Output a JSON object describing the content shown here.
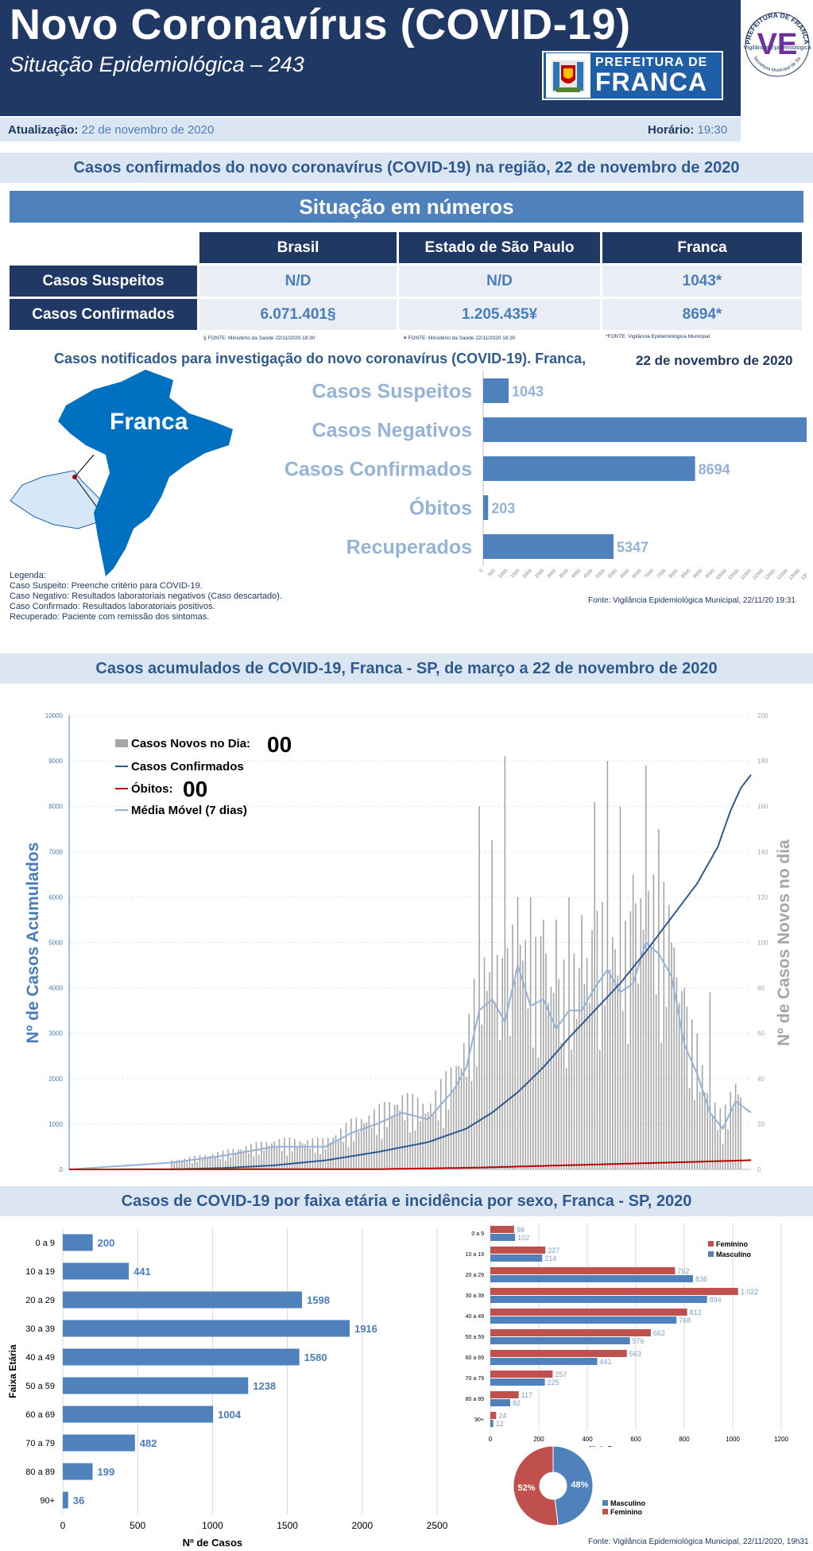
{
  "header": {
    "title": "Novo Coronavírus (COVID-19)",
    "subtitle": "Situação Epidemiológica – 243",
    "logo_small": "PREFEITURA DE",
    "logo_big": "FRANCA",
    "seal_top": "PREFEITURA DE FRANCA",
    "seal_mid": "Vigilância Epidemiológica",
    "seal_bottom": "Secretaria Municipal de Saúde",
    "seal_letter": "VE"
  },
  "update": {
    "date_label": "Atualização:",
    "date_value": "22 de novembro de 2020",
    "time_label": "Horário:",
    "time_value": "19:30"
  },
  "section1": {
    "title": "Casos confirmados do novo coronavírus (COVID-19) na região, 22 de novembro de 2020",
    "table_title": "Situação em números",
    "columns": [
      "Brasil",
      "Estado de São Paulo",
      "Franca"
    ],
    "rows": [
      {
        "label": "Casos Suspeitos",
        "values": [
          "N/D",
          "N/D",
          "1043*"
        ]
      },
      {
        "label": "Casos Confirmados",
        "values": [
          "6.071.401§",
          "1.205.435¥",
          "8694*"
        ]
      }
    ],
    "sources": [
      "§ FONTE: Ministério da Saúde 22/11/2020 18:30",
      "¥ FONTE: Ministério da Saúde 22/11/2020 18:30",
      "*FONTE: Vigilância Epidemiológica Municipal"
    ]
  },
  "section2": {
    "title": "Casos notificados para investigação do novo coronavírus (COVID-19). Franca,",
    "date": "22 de novembro de 2020",
    "map_label": "Franca",
    "legend_lines": [
      "Legenda:",
      "Caso Suspeito: Preenche critério para COVID-19.",
      "Caso Negativo: Resultados laboratoriais negativos (Caso descartado).",
      "Caso Confirmado: Resultados laboratoriais positivos.",
      "Recuperado: Paciente com remissão dos sintomas."
    ],
    "source": "Fonte: Vigilância Epidemiológica Municipal,  22/11/20 19:31",
    "colors": {
      "bar": "#4f81bd",
      "label": "#95b3d7",
      "map": "#0070c0",
      "map_light": "#d6e8f7"
    }
  },
  "section3": {
    "title": "Casos acumulados de COVID-19, Franca - SP, de março a 22 de novembro de 2020",
    "legend": {
      "new_cases": "Casos Novos no Dia:",
      "new_cases_value": "00",
      "confirmed": "Casos Confirmados",
      "deaths": "Óbitos:",
      "deaths_value": "00",
      "moving_avg": "Média Móvel (7 dias)"
    },
    "left_axis_title": "Nº de Casos Acumulados",
    "right_axis_title": "Nº de Casos Novos no dia"
  },
  "section4": {
    "title": "Casos de COVID-19 por faixa etária e incidência por sexo, Franca - SP, 2020",
    "source": "Fonte: Vigilância Epidemiológica Municipal,  22/11/2020, 19h31"
  },
  "chart_data": [
    {
      "type": "bar",
      "orientation": "horizontal",
      "categories": [
        "Casos Suspeitos",
        "Casos Negativos",
        "Casos Confirmados",
        "Óbitos",
        "Recuperados"
      ],
      "values": [
        1043,
        13743,
        8694,
        203,
        5347
      ],
      "xlim": [
        0,
        15000
      ],
      "xticks": [
        0,
        500,
        1000,
        1500,
        2000,
        2500,
        3000,
        3500,
        4000,
        4500,
        5000,
        5500,
        6000,
        6500,
        7000,
        7500,
        8000,
        8500,
        9000,
        9500,
        10000,
        10500,
        11000,
        11500,
        12000,
        12500,
        13000,
        13500,
        14000,
        14500,
        15000
      ]
    },
    {
      "type": "line",
      "x_count": 260,
      "left_ylim": [
        0,
        10000
      ],
      "left_ticks": [
        0,
        1000,
        2000,
        3000,
        4000,
        5000,
        6000,
        7000,
        8000,
        9000,
        10000
      ],
      "right_ylim": [
        0,
        200
      ],
      "right_ticks": [
        0,
        20,
        40,
        60,
        80,
        100,
        120,
        140,
        160,
        180,
        200
      ],
      "confirmed_anchors": [
        [
          0,
          0
        ],
        [
          40,
          2
        ],
        [
          60,
          30
        ],
        [
          80,
          90
        ],
        [
          100,
          200
        ],
        [
          120,
          380
        ],
        [
          140,
          600
        ],
        [
          155,
          900
        ],
        [
          165,
          1250
        ],
        [
          175,
          1700
        ],
        [
          185,
          2250
        ],
        [
          195,
          2900
        ],
        [
          205,
          3500
        ],
        [
          215,
          4100
        ],
        [
          225,
          4800
        ],
        [
          235,
          5550
        ],
        [
          245,
          6300
        ],
        [
          253,
          7100
        ],
        [
          258,
          7900
        ],
        [
          262,
          8400
        ],
        [
          266,
          8694
        ]
      ],
      "deaths_anchors": [
        [
          0,
          0
        ],
        [
          120,
          5
        ],
        [
          160,
          40
        ],
        [
          200,
          100
        ],
        [
          240,
          160
        ],
        [
          266,
          203
        ]
      ],
      "moving_avg_anchors": [
        [
          0,
          0
        ],
        [
          40,
          3
        ],
        [
          60,
          6
        ],
        [
          80,
          10
        ],
        [
          100,
          10
        ],
        [
          110,
          16
        ],
        [
          120,
          20
        ],
        [
          130,
          25
        ],
        [
          140,
          22
        ],
        [
          150,
          35
        ],
        [
          155,
          45
        ],
        [
          160,
          70
        ],
        [
          165,
          75
        ],
        [
          170,
          65
        ],
        [
          175,
          90
        ],
        [
          180,
          72
        ],
        [
          185,
          75
        ],
        [
          190,
          62
        ],
        [
          195,
          70
        ],
        [
          200,
          70
        ],
        [
          205,
          80
        ],
        [
          210,
          88
        ],
        [
          215,
          78
        ],
        [
          220,
          82
        ],
        [
          225,
          100
        ],
        [
          230,
          95
        ],
        [
          235,
          85
        ],
        [
          240,
          55
        ],
        [
          245,
          42
        ],
        [
          250,
          25
        ],
        [
          255,
          18
        ],
        [
          260,
          30
        ],
        [
          266,
          25
        ]
      ],
      "new_cases_peaks": [
        [
          160,
          160
        ],
        [
          165,
          145
        ],
        [
          170,
          182
        ],
        [
          175,
          120
        ],
        [
          180,
          120
        ],
        [
          185,
          110
        ],
        [
          190,
          110
        ],
        [
          195,
          120
        ],
        [
          200,
          112
        ],
        [
          205,
          162
        ],
        [
          210,
          180
        ],
        [
          215,
          160
        ],
        [
          220,
          130
        ],
        [
          225,
          178
        ],
        [
          230,
          150
        ],
        [
          235,
          100
        ],
        [
          240,
          80
        ],
        [
          245,
          60
        ],
        [
          250,
          78
        ]
      ]
    },
    {
      "type": "bar",
      "orientation": "horizontal",
      "ylabel": "Faixa Etária",
      "xlabel": "Nº de Casos",
      "categories": [
        "0 a 9",
        "10 a 19",
        "20 a 29",
        "30 a 39",
        "40 a 49",
        "50 a 59",
        "60  a 69",
        "70 a 79",
        "80 a 89",
        "90+"
      ],
      "values": [
        200,
        441,
        1598,
        1916,
        1580,
        1238,
        1004,
        482,
        199,
        36
      ],
      "xlim": [
        0,
        2500
      ],
      "xticks": [
        0,
        500,
        1000,
        1500,
        2000,
        2500
      ]
    },
    {
      "type": "bar",
      "orientation": "horizontal",
      "xlabel": "Nº de Casos",
      "categories": [
        "0 a 9",
        "10 a 19",
        "20 a 29",
        "30 a 39",
        "40 a 49",
        "50 a 59",
        "60 a 69",
        "70 a 79",
        "80 a 89",
        "90+"
      ],
      "series": [
        {
          "name": "Feminino",
          "values": [
            98,
            227,
            762,
            1022,
            812,
            662,
            563,
            257,
            117,
            24
          ],
          "labels": [
            "98",
            "227",
            "762",
            "1.022",
            "812",
            "662",
            "563",
            "257",
            "117",
            "24"
          ],
          "color": "#c0504d"
        },
        {
          "name": "Masculino",
          "values": [
            102,
            214,
            836,
            894,
            768,
            576,
            441,
            225,
            82,
            12
          ],
          "labels": [
            "102",
            "214",
            "836",
            "894",
            "768",
            "576",
            "441",
            "225",
            "82",
            "12"
          ],
          "color": "#4f81bd"
        }
      ],
      "xlim": [
        0,
        1200
      ],
      "xticks": [
        0,
        200,
        400,
        600,
        800,
        1000,
        1200
      ]
    },
    {
      "type": "pie",
      "slices": [
        {
          "name": "Masculino",
          "label": "48%",
          "value": 48,
          "color": "#4f81bd"
        },
        {
          "name": "Feminino",
          "label": "52%",
          "value": 52,
          "color": "#c0504d"
        }
      ]
    }
  ]
}
